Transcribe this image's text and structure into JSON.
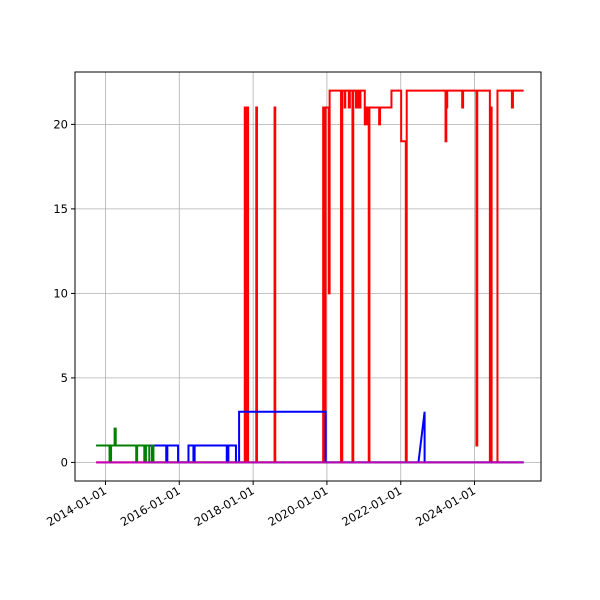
{
  "chart_data": {
    "type": "line",
    "title": "",
    "xlabel": "",
    "ylabel": "",
    "x_axis_type": "date",
    "xlim": [
      "2013-03-05",
      "2025-10-20"
    ],
    "ylim": [
      -1.1,
      23.1
    ],
    "grid": true,
    "legend": "none",
    "x_ticks": [
      "2014-01-01",
      "2016-01-01",
      "2018-01-01",
      "2020-01-01",
      "2022-01-01",
      "2024-01-01"
    ],
    "y_ticks": [
      0,
      5,
      10,
      15,
      20
    ],
    "series": [
      {
        "color": "#ff0000",
        "points": [
          [
            "2013-10-01",
            0
          ],
          [
            "2017-10-10",
            0
          ],
          [
            "2017-10-10",
            21
          ],
          [
            "2017-10-18",
            21
          ],
          [
            "2017-10-18",
            0
          ],
          [
            "2017-10-24",
            0
          ],
          [
            "2017-10-24",
            21
          ],
          [
            "2017-11-01",
            21
          ],
          [
            "2017-11-01",
            0
          ],
          [
            "2017-11-06",
            0
          ],
          [
            "2017-11-06",
            21
          ],
          [
            "2017-11-12",
            21
          ],
          [
            "2017-11-12",
            0
          ],
          [
            "2018-02-01",
            0
          ],
          [
            "2018-02-01",
            21
          ],
          [
            "2018-02-08",
            21
          ],
          [
            "2018-02-08",
            0
          ],
          [
            "2018-08-01",
            0
          ],
          [
            "2018-08-01",
            21
          ],
          [
            "2018-08-08",
            21
          ],
          [
            "2018-08-08",
            0
          ],
          [
            "2019-11-25",
            0
          ],
          [
            "2019-11-25",
            21
          ],
          [
            "2019-12-03",
            21
          ],
          [
            "2019-12-03",
            0
          ],
          [
            "2019-12-18",
            0
          ],
          [
            "2019-12-18",
            21
          ],
          [
            "2020-01-20",
            21
          ],
          [
            "2020-01-20",
            10
          ],
          [
            "2020-01-28",
            10
          ],
          [
            "2020-01-28",
            22
          ],
          [
            "2020-05-20",
            22
          ],
          [
            "2020-05-20",
            0
          ],
          [
            "2020-06-01",
            0
          ],
          [
            "2020-06-01",
            22
          ],
          [
            "2020-06-25",
            22
          ],
          [
            "2020-06-25",
            21
          ],
          [
            "2020-07-01",
            21
          ],
          [
            "2020-07-01",
            22
          ],
          [
            "2020-08-05",
            22
          ],
          [
            "2020-08-05",
            21
          ],
          [
            "2020-08-15",
            21
          ],
          [
            "2020-08-15",
            22
          ],
          [
            "2020-09-10",
            22
          ],
          [
            "2020-09-10",
            0
          ],
          [
            "2020-09-18",
            0
          ],
          [
            "2020-09-18",
            22
          ],
          [
            "2020-10-15",
            22
          ],
          [
            "2020-10-15",
            21
          ],
          [
            "2020-11-01",
            21
          ],
          [
            "2020-11-01",
            22
          ],
          [
            "2020-11-20",
            22
          ],
          [
            "2020-11-20",
            21
          ],
          [
            "2020-11-28",
            21
          ],
          [
            "2020-11-28",
            22
          ],
          [
            "2021-01-10",
            22
          ],
          [
            "2021-01-10",
            20
          ],
          [
            "2021-01-25",
            20
          ],
          [
            "2021-01-25",
            21
          ],
          [
            "2021-02-05",
            21
          ],
          [
            "2021-02-05",
            20
          ],
          [
            "2021-02-18",
            20
          ],
          [
            "2021-02-18",
            0
          ],
          [
            "2021-02-25",
            0
          ],
          [
            "2021-02-25",
            21
          ],
          [
            "2021-06-01",
            21
          ],
          [
            "2021-06-01",
            20
          ],
          [
            "2021-06-10",
            20
          ],
          [
            "2021-06-10",
            21
          ],
          [
            "2021-10-01",
            21
          ],
          [
            "2021-10-01",
            22
          ],
          [
            "2022-01-05",
            22
          ],
          [
            "2022-01-05",
            19
          ],
          [
            "2022-02-20",
            19
          ],
          [
            "2022-02-20",
            0
          ],
          [
            "2022-03-01",
            0
          ],
          [
            "2022-03-01",
            22
          ],
          [
            "2023-03-20",
            22
          ],
          [
            "2023-03-20",
            19
          ],
          [
            "2023-03-28",
            19
          ],
          [
            "2023-03-28",
            21
          ],
          [
            "2023-04-06",
            21
          ],
          [
            "2023-04-06",
            22
          ],
          [
            "2023-09-01",
            22
          ],
          [
            "2023-09-01",
            21
          ],
          [
            "2023-09-10",
            21
          ],
          [
            "2023-09-10",
            22
          ],
          [
            "2024-01-20",
            22
          ],
          [
            "2024-01-20",
            1
          ],
          [
            "2024-01-28",
            1
          ],
          [
            "2024-01-28",
            22
          ],
          [
            "2024-06-01",
            22
          ],
          [
            "2024-06-01",
            0
          ],
          [
            "2024-06-10",
            0
          ],
          [
            "2024-06-10",
            21
          ],
          [
            "2024-06-18",
            21
          ],
          [
            "2024-06-18",
            0
          ],
          [
            "2024-08-15",
            0
          ],
          [
            "2024-08-15",
            22
          ],
          [
            "2025-01-05",
            22
          ],
          [
            "2025-01-05",
            21
          ],
          [
            "2025-01-15",
            21
          ],
          [
            "2025-01-15",
            22
          ],
          [
            "2025-05-01",
            22
          ]
        ]
      },
      {
        "color": "#0000ff",
        "points": [
          [
            "2013-10-01",
            1
          ],
          [
            "2015-08-25",
            1
          ],
          [
            "2015-08-25",
            0
          ],
          [
            "2015-09-05",
            0
          ],
          [
            "2015-09-05",
            1
          ],
          [
            "2015-12-20",
            1
          ],
          [
            "2015-12-20",
            0
          ],
          [
            "2016-04-01",
            0
          ],
          [
            "2016-04-01",
            1
          ],
          [
            "2016-05-20",
            1
          ],
          [
            "2016-05-20",
            0
          ],
          [
            "2016-06-01",
            0
          ],
          [
            "2016-06-01",
            1
          ],
          [
            "2017-04-15",
            1
          ],
          [
            "2017-04-15",
            0
          ],
          [
            "2017-05-01",
            0
          ],
          [
            "2017-05-01",
            1
          ],
          [
            "2017-07-15",
            1
          ],
          [
            "2017-07-15",
            0
          ],
          [
            "2017-08-15",
            0
          ],
          [
            "2017-08-15",
            3
          ],
          [
            "2019-12-20",
            3
          ],
          [
            "2019-12-20",
            0
          ],
          [
            "2022-06-25",
            0
          ],
          [
            "2022-08-25",
            3
          ],
          [
            "2022-08-25",
            0
          ],
          [
            "2025-05-01",
            0
          ]
        ]
      },
      {
        "color": "#008000",
        "points": [
          [
            "2013-10-01",
            1
          ],
          [
            "2014-02-10",
            1
          ],
          [
            "2014-02-10",
            0
          ],
          [
            "2014-02-25",
            0
          ],
          [
            "2014-02-25",
            1
          ],
          [
            "2014-04-01",
            1
          ],
          [
            "2014-04-01",
            2
          ],
          [
            "2014-04-12",
            2
          ],
          [
            "2014-04-12",
            1
          ],
          [
            "2014-11-01",
            1
          ],
          [
            "2014-11-01",
            0
          ],
          [
            "2014-11-10",
            0
          ],
          [
            "2014-11-10",
            1
          ],
          [
            "2015-01-20",
            1
          ],
          [
            "2015-01-20",
            0
          ],
          [
            "2015-02-05",
            0
          ],
          [
            "2015-02-05",
            1
          ],
          [
            "2015-03-10",
            1
          ],
          [
            "2015-03-10",
            0
          ],
          [
            "2015-04-05",
            0
          ],
          [
            "2015-04-05",
            1
          ],
          [
            "2015-04-20",
            1
          ],
          [
            "2015-04-20",
            0
          ],
          [
            "2025-05-01",
            0
          ]
        ]
      },
      {
        "color": "#bf00bf",
        "points": [
          [
            "2013-10-01",
            0
          ],
          [
            "2025-05-01",
            0
          ]
        ]
      }
    ]
  }
}
